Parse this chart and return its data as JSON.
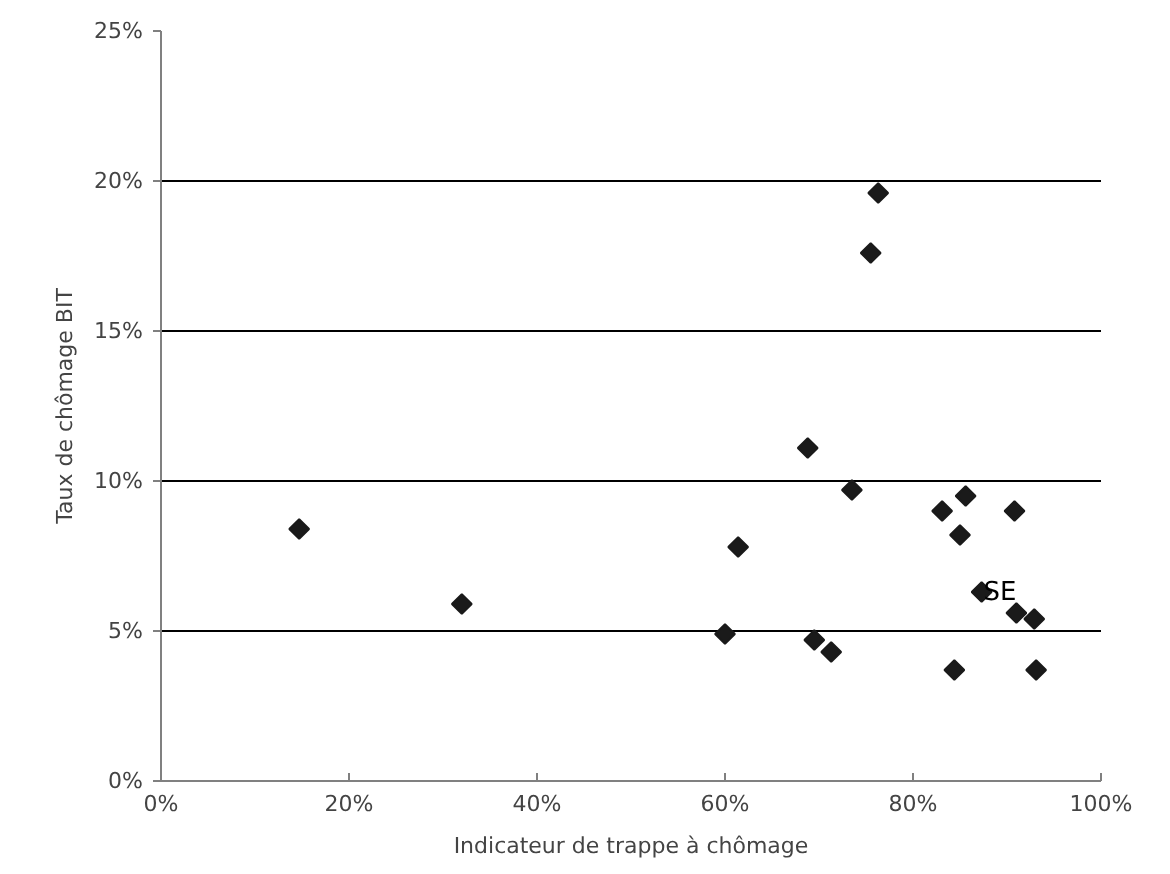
{
  "chart_data": {
    "type": "scatter",
    "xlabel": "Indicateur de trappe à chômage",
    "ylabel": "Taux de chômage BIT",
    "x": [
      14.7,
      32,
      60,
      61.4,
      68.8,
      69.5,
      71.3,
      73.5,
      75.5,
      76.3,
      83.1,
      84.4,
      85,
      85.6,
      87.3,
      90.8,
      91,
      92.9,
      93.1
    ],
    "series": [
      {
        "color": "#1a1a1a",
        "values": [
          8.4,
          5.9,
          4.9,
          7.8,
          11.1,
          4.7,
          4.3,
          9.7,
          17.6,
          19.6,
          9.0,
          3.7,
          8.2,
          9.5,
          6.3,
          9.0,
          5.6,
          5.4,
          3.7
        ]
      }
    ],
    "marker": "diamond",
    "grid": "y",
    "xlim": [
      0,
      100
    ],
    "ylim": [
      0,
      25
    ],
    "xticks": [
      {
        "value": 0,
        "label": "0%"
      },
      {
        "value": 20,
        "label": "20%"
      },
      {
        "value": 40,
        "label": "40%"
      },
      {
        "value": 60,
        "label": "60%"
      },
      {
        "value": 80,
        "label": "80%"
      },
      {
        "value": 100,
        "label": "100%"
      }
    ],
    "yticks": [
      {
        "value": 0,
        "label": "0%"
      },
      {
        "value": 5,
        "label": "5%"
      },
      {
        "value": 10,
        "label": "10%"
      },
      {
        "value": 15,
        "label": "15%"
      },
      {
        "value": 20,
        "label": "20%"
      },
      {
        "value": 25,
        "label": "25%"
      }
    ],
    "annotations": [
      {
        "text": "SE",
        "x": 87.3,
        "y": 6.3
      }
    ]
  }
}
